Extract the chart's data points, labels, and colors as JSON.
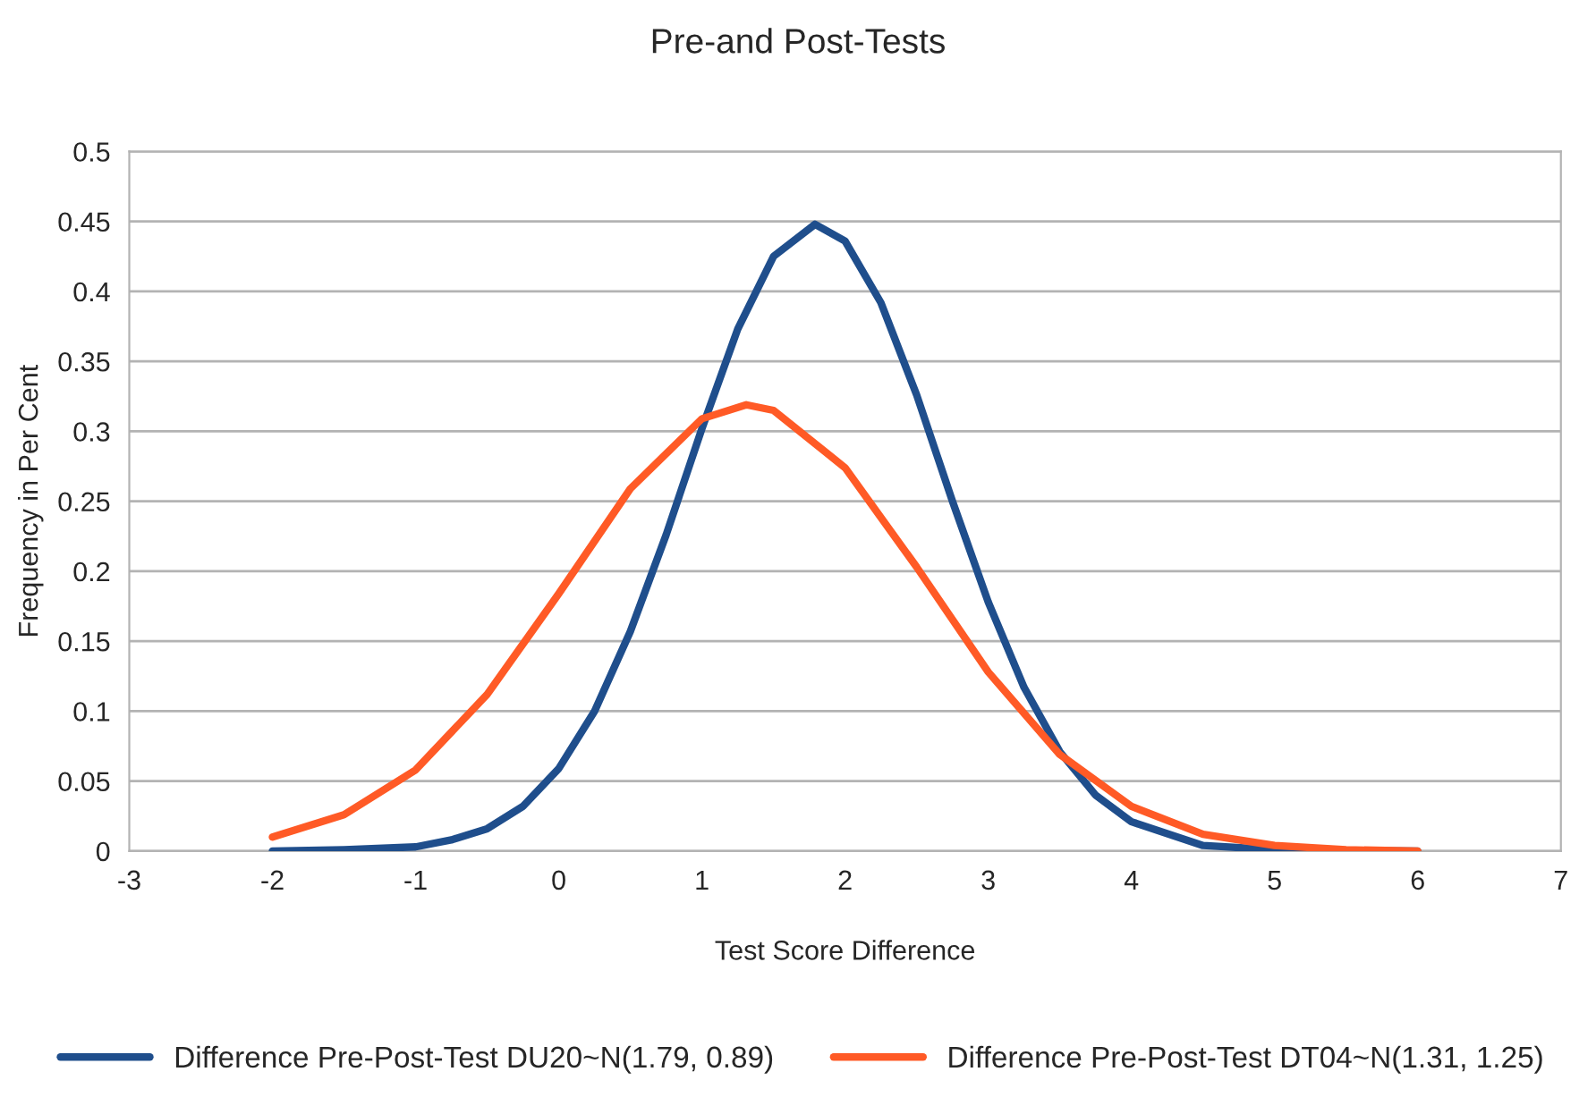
{
  "chart_data": {
    "type": "line",
    "title": "Pre-and Post-Tests",
    "xlabel": "Test Score Difference",
    "ylabel": "Frequency in Per Cent",
    "xlim": [
      -3,
      7
    ],
    "xticks": [
      -3,
      -2,
      -1,
      0,
      1,
      2,
      3,
      4,
      5,
      6,
      7
    ],
    "ylim": [
      0,
      0.5
    ],
    "yticks": [
      0,
      0.05,
      0.1,
      0.15,
      0.2,
      0.25,
      0.3,
      0.35,
      0.4,
      0.45,
      0.5
    ],
    "grid": "y",
    "legend": "bottom",
    "marker": "none",
    "line_style": "solid",
    "series": [
      {
        "name": "Difference Pre-Post-Test DU20~N(1.79, 0.89)",
        "color": "#1f4e8c",
        "x": [
          -2,
          -1.5,
          -1,
          -0.75,
          -0.5,
          -0.25,
          0,
          0.25,
          0.5,
          0.75,
          1,
          1.25,
          1.5,
          1.79,
          2,
          2.25,
          2.5,
          2.75,
          3,
          3.25,
          3.5,
          3.75,
          4,
          4.5,
          5,
          6
        ],
        "values": [
          0,
          0.001,
          0.003,
          0.008,
          0.016,
          0.032,
          0.059,
          0.1,
          0.157,
          0.226,
          0.302,
          0.373,
          0.425,
          0.448,
          0.436,
          0.392,
          0.326,
          0.25,
          0.178,
          0.117,
          0.071,
          0.04,
          0.021,
          0.004,
          0.001,
          0
        ]
      },
      {
        "name": "Difference Pre-Post-Test DT04~N(1.31, 1.25)",
        "color": "#ff5a26",
        "x": [
          -2,
          -1.5,
          -1,
          -0.5,
          0,
          0.5,
          1,
          1.31,
          1.5,
          2,
          2.5,
          3,
          3.5,
          4,
          4.5,
          5,
          5.5,
          6
        ],
        "values": [
          0.01,
          0.026,
          0.058,
          0.112,
          0.184,
          0.259,
          0.309,
          0.319,
          0.315,
          0.274,
          0.203,
          0.128,
          0.069,
          0.032,
          0.012,
          0.004,
          0.001,
          0
        ]
      }
    ]
  }
}
